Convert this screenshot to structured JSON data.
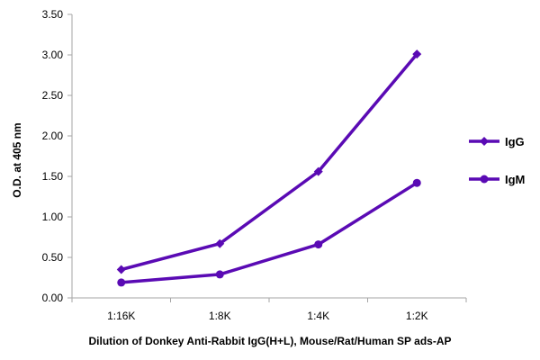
{
  "chart_data": {
    "type": "line",
    "categories": [
      "1:16K",
      "1:8K",
      "1:4K",
      "1:2K"
    ],
    "series": [
      {
        "name": "IgG",
        "values": [
          0.35,
          0.67,
          1.56,
          3.01
        ],
        "color": "#5a0ab4",
        "marker": "diamond"
      },
      {
        "name": "IgM",
        "values": [
          0.19,
          0.29,
          0.66,
          1.42
        ],
        "color": "#5a0ab4",
        "marker": "circle"
      }
    ],
    "yticks": [
      "0.00",
      "0.50",
      "1.00",
      "1.50",
      "2.00",
      "2.50",
      "3.00",
      "3.50"
    ],
    "ylim": [
      0,
      3.5
    ],
    "xlabel": "Dilution of Donkey Anti-Rabbit IgG(H+L), Mouse/Rat/Human SP ads-AP",
    "ylabel": "O.D. at 405 nm",
    "grid": "none",
    "legend": "right"
  }
}
